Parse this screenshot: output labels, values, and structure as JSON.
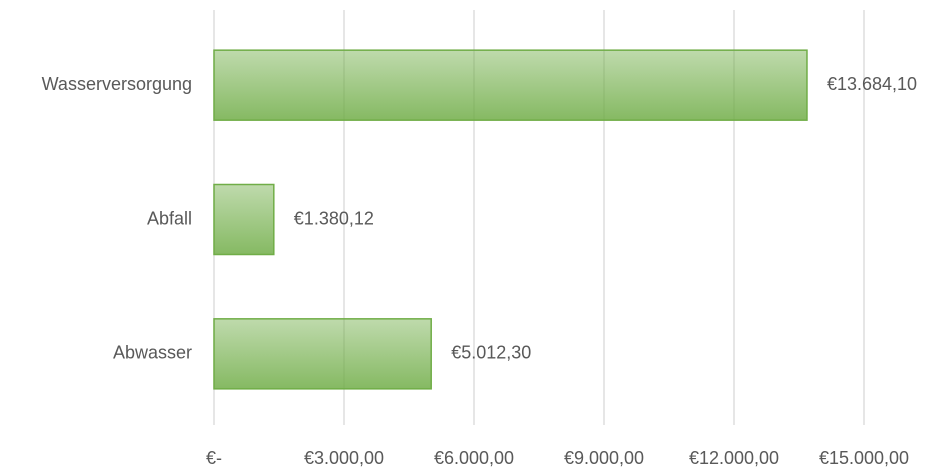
{
  "chart_data": {
    "type": "bar",
    "orientation": "horizontal",
    "categories": [
      "Wasserversorgung",
      "Abfall",
      "Abwasser"
    ],
    "values": [
      13684.1,
      1380.12,
      5012.3
    ],
    "value_labels": [
      "€13.684,10",
      "€1.380,12",
      "€5.012,30"
    ],
    "color": "#70ad47",
    "xlim": [
      0,
      15000
    ],
    "xticks": [
      {
        "value": 0,
        "label": "€-"
      },
      {
        "value": 3000,
        "label": "€3.000,00"
      },
      {
        "value": 6000,
        "label": "€6.000,00"
      },
      {
        "value": 9000,
        "label": "€9.000,00"
      },
      {
        "value": 12000,
        "label": "€12.000,00"
      },
      {
        "value": 15000,
        "label": "€15.000,00"
      }
    ],
    "grid": true
  }
}
